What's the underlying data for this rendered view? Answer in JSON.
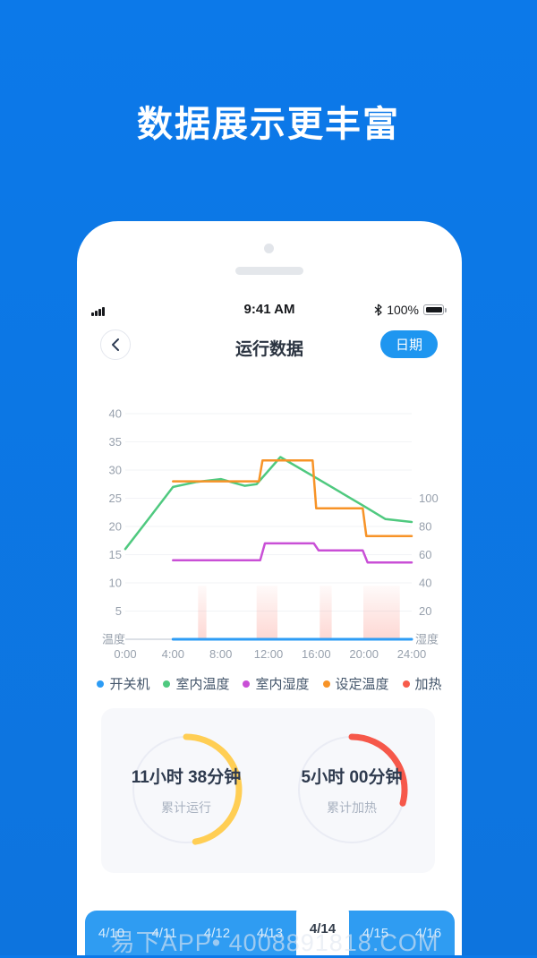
{
  "hero": {
    "title": "数据展示更丰富"
  },
  "status_bar": {
    "signal_icon": "cellular-signal",
    "time": "9:41 AM",
    "bluetooth_icon": "bluetooth",
    "battery_percent": "100%",
    "battery_icon": "battery-full"
  },
  "nav": {
    "back_icon": "chevron-left",
    "title": "运行数据",
    "date_button_label": "日期"
  },
  "chart_data": {
    "type": "line",
    "x": {
      "unit": "hour",
      "range": [
        0,
        24
      ],
      "tick_hours": [
        0,
        4,
        8,
        12,
        16,
        20,
        24
      ],
      "tick_labels": [
        "0:00",
        "4:00",
        "8:00",
        "12:00",
        "16:00",
        "20:00",
        "24:00"
      ]
    },
    "y_left": {
      "label": "温度",
      "range": [
        0,
        40
      ],
      "ticks": [
        5,
        10,
        15,
        20,
        25,
        30,
        35,
        40
      ]
    },
    "y_right": {
      "label": "湿度",
      "range": [
        0,
        160
      ],
      "ticks": [
        20,
        40,
        60,
        80,
        100
      ]
    },
    "grid": "horizontal",
    "series": [
      {
        "name": "开关机",
        "color": "#2D9CF5",
        "axis": "left",
        "width": 3,
        "points": [
          [
            4,
            0
          ],
          [
            24,
            0
          ]
        ]
      },
      {
        "name": "室内温度",
        "color": "#4FC97F",
        "axis": "left",
        "width": 2.5,
        "points": [
          [
            0,
            16
          ],
          [
            2,
            21.5
          ],
          [
            4,
            27
          ],
          [
            6,
            27.9
          ],
          [
            8,
            28.4
          ],
          [
            10,
            27.2
          ],
          [
            11,
            27.5
          ],
          [
            13,
            32.3
          ],
          [
            16,
            28.6
          ],
          [
            20,
            23.6
          ],
          [
            21.8,
            21.3
          ],
          [
            24,
            20.8
          ]
        ]
      },
      {
        "name": "室内湿度",
        "color": "#C94FD6",
        "axis": "right",
        "width": 2.5,
        "points": [
          [
            4,
            56
          ],
          [
            11.3,
            56
          ],
          [
            11.7,
            68
          ],
          [
            15.8,
            68
          ],
          [
            16.2,
            63
          ],
          [
            19.9,
            63
          ],
          [
            20.3,
            54.5
          ],
          [
            24,
            54.5
          ]
        ]
      },
      {
        "name": "设定温度",
        "color": "#F79327",
        "axis": "left",
        "width": 2.5,
        "points": [
          [
            4,
            28
          ],
          [
            11.2,
            28
          ],
          [
            11.5,
            31.7
          ],
          [
            15.7,
            31.7
          ],
          [
            16,
            23.2
          ],
          [
            19.9,
            23.2
          ],
          [
            20.2,
            18.3
          ],
          [
            24,
            18.3
          ]
        ]
      }
    ],
    "heat_bands": {
      "name": "加热",
      "color": "#F75B4A",
      "top_value": 9.5,
      "ranges_hours": [
        [
          6.1,
          6.8
        ],
        [
          11.0,
          12.75
        ],
        [
          16.3,
          17.3
        ],
        [
          19.95,
          23.0
        ]
      ]
    },
    "legend": [
      {
        "label": "开关机",
        "color": "#2D9CF5"
      },
      {
        "label": "室内温度",
        "color": "#4FC97F"
      },
      {
        "label": "室内湿度",
        "color": "#C94FD6"
      },
      {
        "label": "设定温度",
        "color": "#F79327"
      },
      {
        "label": "加热",
        "color": "#F75B4A"
      }
    ]
  },
  "summary": {
    "gauges": [
      {
        "value": "11小时 38分钟",
        "label": "累计运行",
        "color": "#FFCE54",
        "sweep_deg": 170
      },
      {
        "value": "5小时 00分钟",
        "label": "累计加热",
        "color": "#F6584A",
        "sweep_deg": 105
      }
    ]
  },
  "tab_bar": {
    "items": [
      "4/10",
      "4/11",
      "4/12",
      "4/13",
      "4/14",
      "4/15",
      "4/16"
    ],
    "selected_index": 4
  },
  "watermark": {
    "text": "易下APP• 4008891818.COM"
  },
  "colors": {
    "background_top": "#0C79E9",
    "background_bottom": "#0D74DE",
    "accent_blue": "#1E96F0",
    "tab_bar_blue": "#2F9CF2",
    "card_bg": "#F7F8FB",
    "axis_text": "#98A1AD"
  }
}
